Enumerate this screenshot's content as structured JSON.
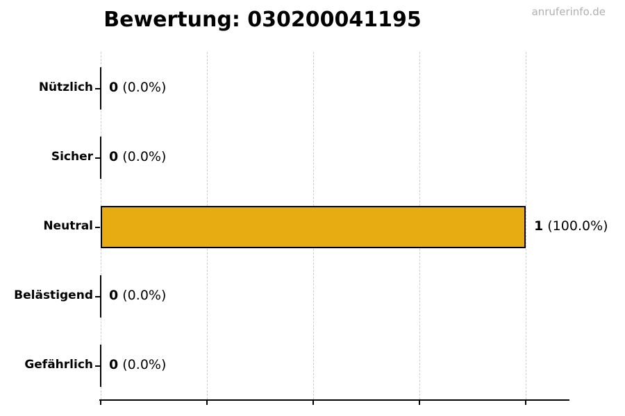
{
  "watermark": "anruferinfo.de",
  "chart_data": {
    "type": "bar",
    "orientation": "horizontal",
    "title": "Bewertung: 030200041195",
    "categories": [
      "Nützlich",
      "Sicher",
      "Neutral",
      "Belästigend",
      "Gefährlich"
    ],
    "values": [
      0,
      0,
      1,
      0,
      0
    ],
    "value_labels": [
      {
        "count": "0",
        "percent": "(0.0%)"
      },
      {
        "count": "0",
        "percent": "(0.0%)"
      },
      {
        "count": "1",
        "percent": "(100.0%)"
      },
      {
        "count": "0",
        "percent": "(0.0%)"
      },
      {
        "count": "0",
        "percent": "(0.0%)"
      }
    ],
    "xlabel": "",
    "ylabel": "",
    "xlim": [
      0,
      1.1
    ],
    "x_tick_values": [
      0,
      0.25,
      0.5,
      0.75,
      1.0
    ],
    "x_tick_labels_visible": false,
    "grid": "vertical-dashed",
    "legend": false,
    "colors": {
      "bar_fill": "#e7ac11",
      "bar_edge": "#000000",
      "grid_line": "#cccccc",
      "axis_line": "#000000",
      "title_text": "#000000",
      "label_text": "#000000",
      "watermark_text": "#b0b0b0",
      "background": "#ffffff"
    }
  }
}
